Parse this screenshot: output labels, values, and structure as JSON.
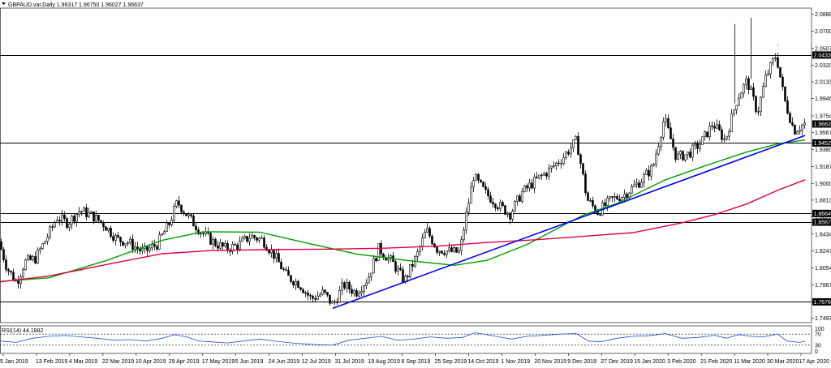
{
  "header": {
    "symbol_line": "GBPAUD.var,Daily  1.96317 1.96750 1.96027 1.96637"
  },
  "chart_data": {
    "type": "candlestick",
    "title": "GBPAUD.var,Daily",
    "ohlc_last": {
      "open": 1.96317,
      "high": 1.9675,
      "low": 1.96027,
      "close": 1.96637
    },
    "x_tick_labels": [
      "5 Jan 2019",
      "13 Feb 2019",
      "4 Mar 2019",
      "22 Mar 2019",
      "10 Apr 2019",
      "29 Apr 2019",
      "17 May 2019",
      "5 Jun 2019",
      "24 Jun 2019",
      "12 Jul 2019",
      "31 Jul 2019",
      "19 Aug 2019",
      "6 Sep 2019",
      "25 Sep 2019",
      "14 Oct 2019",
      "1 Nov 2019",
      "20 Nov 2019",
      "9 Dec 2019",
      "27 Dec 2019",
      "15 Jan 2020",
      "3 Feb 2020",
      "21 Feb 2020",
      "11 Mar 2020",
      "30 Mar 2020",
      "17 Apr 2020"
    ],
    "y_tick_labels": [
      "2.08880",
      "2.07000",
      "2.05070",
      "2.03205",
      "2.01335",
      "1.99465",
      "1.97540",
      "1.95670",
      "1.93800",
      "1.91870",
      "1.90000",
      "1.88135",
      "1.86265",
      "1.84340",
      "1.82470",
      "1.80545",
      "1.78675",
      "1.76805",
      "1.74935"
    ],
    "ylim": [
      1.7445,
      2.0958
    ],
    "horizontal_levels": [
      {
        "value": 2.04338,
        "label": "2.04338"
      },
      {
        "value": 1.9452,
        "label": "1.94520"
      },
      {
        "value": 1.86643,
        "label": "1.86643"
      },
      {
        "value": 1.85672,
        "label": "1.85672"
      },
      {
        "value": 1.76768,
        "label": "1.76768"
      }
    ],
    "current_price_label": "1.96637",
    "current_price": 1.96637,
    "trendline": {
      "start": {
        "index": 410,
        "value": 1.7605
      },
      "end": {
        "index": 992,
        "value": 1.9535
      },
      "color": "#0000ff"
    },
    "moving_averages": [
      {
        "color": "#00a000",
        "points": [
          [
            0,
            1.7905
          ],
          [
            60,
            1.7945
          ],
          [
            130,
            1.8135
          ],
          [
            200,
            1.8365
          ],
          [
            250,
            1.846
          ],
          [
            320,
            1.8455
          ],
          [
            380,
            1.833
          ],
          [
            440,
            1.821
          ],
          [
            500,
            1.814
          ],
          [
            560,
            1.8085
          ],
          [
            600,
            1.814
          ],
          [
            650,
            1.832
          ],
          [
            700,
            1.856
          ],
          [
            720,
            1.865
          ],
          [
            760,
            1.8775
          ],
          [
            820,
            1.904
          ],
          [
            870,
            1.92
          ],
          [
            920,
            1.935
          ],
          [
            960,
            1.9445
          ],
          [
            992,
            1.9485
          ]
        ]
      },
      {
        "color": "#e00040",
        "points": [
          [
            0,
            1.79
          ],
          [
            60,
            1.7965
          ],
          [
            140,
            1.811
          ],
          [
            200,
            1.8215
          ],
          [
            260,
            1.825
          ],
          [
            330,
            1.826
          ],
          [
            400,
            1.8265
          ],
          [
            470,
            1.8275
          ],
          [
            540,
            1.83
          ],
          [
            600,
            1.834
          ],
          [
            660,
            1.837
          ],
          [
            720,
            1.841
          ],
          [
            780,
            1.845
          ],
          [
            840,
            1.856
          ],
          [
            880,
            1.865
          ],
          [
            920,
            1.877
          ],
          [
            960,
            1.893
          ],
          [
            992,
            1.904
          ]
        ]
      }
    ],
    "price_path": [
      [
        0,
        1.835
      ],
      [
        10,
        1.806
      ],
      [
        22,
        1.789
      ],
      [
        32,
        1.812
      ],
      [
        45,
        1.816
      ],
      [
        60,
        1.841
      ],
      [
        72,
        1.862
      ],
      [
        85,
        1.856
      ],
      [
        100,
        1.87
      ],
      [
        115,
        1.864
      ],
      [
        130,
        1.854
      ],
      [
        145,
        1.838
      ],
      [
        160,
        1.834
      ],
      [
        178,
        1.823
      ],
      [
        195,
        1.832
      ],
      [
        210,
        1.855
      ],
      [
        220,
        1.879
      ],
      [
        235,
        1.861
      ],
      [
        250,
        1.845
      ],
      [
        265,
        1.834
      ],
      [
        280,
        1.827
      ],
      [
        295,
        1.831
      ],
      [
        310,
        1.841
      ],
      [
        325,
        1.837
      ],
      [
        340,
        1.819
      ],
      [
        355,
        1.796
      ],
      [
        370,
        1.788
      ],
      [
        385,
        1.771
      ],
      [
        400,
        1.778
      ],
      [
        412,
        1.764
      ],
      [
        425,
        1.787
      ],
      [
        440,
        1.778
      ],
      [
        455,
        1.794
      ],
      [
        468,
        1.827
      ],
      [
        485,
        1.812
      ],
      [
        500,
        1.791
      ],
      [
        515,
        1.819
      ],
      [
        527,
        1.848
      ],
      [
        540,
        1.827
      ],
      [
        555,
        1.824
      ],
      [
        568,
        1.823
      ],
      [
        575,
        1.86
      ],
      [
        585,
        1.908
      ],
      [
        600,
        1.889
      ],
      [
        615,
        1.876
      ],
      [
        630,
        1.866
      ],
      [
        645,
        1.89
      ],
      [
        660,
        1.902
      ],
      [
        680,
        1.916
      ],
      [
        695,
        1.929
      ],
      [
        712,
        1.948
      ],
      [
        725,
        1.882
      ],
      [
        738,
        1.868
      ],
      [
        755,
        1.882
      ],
      [
        770,
        1.887
      ],
      [
        790,
        1.902
      ],
      [
        806,
        1.918
      ],
      [
        820,
        1.973
      ],
      [
        835,
        1.929
      ],
      [
        850,
        1.933
      ],
      [
        865,
        1.945
      ],
      [
        880,
        1.967
      ],
      [
        895,
        1.948
      ],
      [
        910,
        1.995
      ],
      [
        922,
        2.015
      ],
      [
        935,
        1.979
      ],
      [
        945,
        2.018
      ],
      [
        958,
        2.044
      ],
      [
        968,
        1.994
      ],
      [
        980,
        1.959
      ],
      [
        992,
        1.9664
      ]
    ],
    "spikes": [
      [
        905,
        2.078
      ],
      [
        925,
        2.085
      ],
      [
        958,
        2.055
      ]
    ],
    "indicator": {
      "label": "RSI(14) 44.1882",
      "name": "RSI(14)",
      "value": 44.1882,
      "levels": [
        70,
        30
      ],
      "ylim": [
        0,
        100
      ],
      "y_tick_labels": [
        "100",
        "70",
        "30",
        "0"
      ],
      "points": [
        [
          0,
          45
        ],
        [
          20,
          40
        ],
        [
          40,
          55
        ],
        [
          60,
          62
        ],
        [
          80,
          65
        ],
        [
          100,
          60
        ],
        [
          120,
          55
        ],
        [
          140,
          48
        ],
        [
          160,
          50
        ],
        [
          180,
          45
        ],
        [
          200,
          55
        ],
        [
          215,
          68
        ],
        [
          230,
          60
        ],
        [
          245,
          45
        ],
        [
          260,
          42
        ],
        [
          280,
          38
        ],
        [
          300,
          45
        ],
        [
          320,
          52
        ],
        [
          340,
          44
        ],
        [
          360,
          38
        ],
        [
          375,
          35
        ],
        [
          390,
          32
        ],
        [
          410,
          30
        ],
        [
          430,
          48
        ],
        [
          450,
          55
        ],
        [
          470,
          62
        ],
        [
          490,
          48
        ],
        [
          510,
          52
        ],
        [
          530,
          60
        ],
        [
          550,
          55
        ],
        [
          570,
          58
        ],
        [
          585,
          75
        ],
        [
          600,
          68
        ],
        [
          615,
          60
        ],
        [
          630,
          52
        ],
        [
          650,
          62
        ],
        [
          670,
          66
        ],
        [
          690,
          70
        ],
        [
          710,
          72
        ],
        [
          725,
          45
        ],
        [
          740,
          42
        ],
        [
          760,
          55
        ],
        [
          780,
          62
        ],
        [
          800,
          64
        ],
        [
          820,
          72
        ],
        [
          840,
          55
        ],
        [
          860,
          58
        ],
        [
          880,
          66
        ],
        [
          895,
          55
        ],
        [
          910,
          68
        ],
        [
          925,
          62
        ],
        [
          940,
          60
        ],
        [
          958,
          70
        ],
        [
          970,
          45
        ],
        [
          985,
          40
        ],
        [
          992,
          44
        ]
      ]
    },
    "colors": {
      "candle": "#000000",
      "level_line": "#000000",
      "label_box": "#000000",
      "ma_fast": "#00a000",
      "ma_slow": "#e00040",
      "trendline": "#0000ff"
    }
  }
}
